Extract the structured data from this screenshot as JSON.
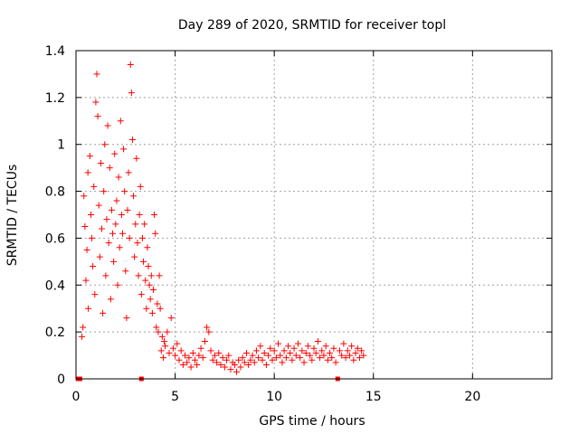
{
  "chart_data": {
    "type": "scatter",
    "title": "Day 289 of 2020, SRMTID for receiver topl",
    "xlabel": "GPS time / hours",
    "ylabel": "SRMTID / TECUs",
    "xlim": [
      0,
      24
    ],
    "ylim": [
      0,
      1.4
    ],
    "xticks": [
      0,
      5,
      10,
      15,
      20
    ],
    "xtick_labels": [
      "0",
      "5",
      "10",
      "15",
      "20"
    ],
    "yticks": [
      0,
      0.2,
      0.4,
      0.6,
      0.8,
      1,
      1.2,
      1.4
    ],
    "ytick_labels": [
      "0",
      "0.2",
      "0.4",
      "0.6",
      "0.8",
      "1",
      "1.2",
      "1.4"
    ],
    "grid": true,
    "marker": "+",
    "color": "#ff0000",
    "series": [
      {
        "name": "SRMTID",
        "marker_squares_x": [
          0.1,
          0.2,
          3.3,
          13.2
        ],
        "points": [
          [
            0.3,
            0.18
          ],
          [
            0.35,
            0.22
          ],
          [
            0.4,
            0.78
          ],
          [
            0.45,
            0.65
          ],
          [
            0.5,
            0.42
          ],
          [
            0.55,
            0.55
          ],
          [
            0.6,
            0.88
          ],
          [
            0.62,
            0.3
          ],
          [
            0.7,
            0.95
          ],
          [
            0.75,
            0.7
          ],
          [
            0.8,
            0.6
          ],
          [
            0.85,
            0.48
          ],
          [
            0.9,
            0.82
          ],
          [
            0.95,
            0.36
          ],
          [
            1.0,
            1.18
          ],
          [
            1.05,
            1.3
          ],
          [
            1.1,
            1.12
          ],
          [
            1.15,
            0.74
          ],
          [
            1.2,
            0.52
          ],
          [
            1.25,
            0.92
          ],
          [
            1.3,
            0.64
          ],
          [
            1.35,
            0.28
          ],
          [
            1.4,
            0.8
          ],
          [
            1.45,
            1.0
          ],
          [
            1.5,
            0.44
          ],
          [
            1.55,
            0.68
          ],
          [
            1.6,
            1.08
          ],
          [
            1.65,
            0.58
          ],
          [
            1.7,
            0.9
          ],
          [
            1.75,
            0.34
          ],
          [
            1.8,
            0.72
          ],
          [
            1.85,
            0.62
          ],
          [
            1.9,
            0.5
          ],
          [
            1.95,
            0.96
          ],
          [
            2.0,
            0.66
          ],
          [
            2.05,
            0.76
          ],
          [
            2.1,
            0.4
          ],
          [
            2.15,
            0.86
          ],
          [
            2.2,
            0.56
          ],
          [
            2.25,
            1.1
          ],
          [
            2.3,
            0.7
          ],
          [
            2.35,
            0.62
          ],
          [
            2.4,
            0.98
          ],
          [
            2.45,
            0.8
          ],
          [
            2.5,
            0.46
          ],
          [
            2.55,
            0.26
          ],
          [
            2.6,
            0.72
          ],
          [
            2.65,
            0.88
          ],
          [
            2.7,
            0.6
          ],
          [
            2.75,
            1.34
          ],
          [
            2.8,
            1.22
          ],
          [
            2.85,
            1.02
          ],
          [
            2.9,
            0.78
          ],
          [
            2.95,
            0.52
          ],
          [
            3.0,
            0.66
          ],
          [
            3.05,
            0.94
          ],
          [
            3.1,
            0.58
          ],
          [
            3.15,
            0.44
          ],
          [
            3.2,
            0.7
          ],
          [
            3.25,
            0.82
          ],
          [
            3.3,
            0.36
          ],
          [
            3.35,
            0.6
          ],
          [
            3.4,
            0.5
          ],
          [
            3.45,
            0.66
          ],
          [
            3.5,
            0.42
          ],
          [
            3.55,
            0.3
          ],
          [
            3.6,
            0.56
          ],
          [
            3.65,
            0.48
          ],
          [
            3.7,
            0.4
          ],
          [
            3.75,
            0.34
          ],
          [
            3.8,
            0.44
          ],
          [
            3.85,
            0.28
          ],
          [
            3.9,
            0.38
          ],
          [
            3.95,
            0.7
          ],
          [
            4.0,
            0.62
          ],
          [
            4.05,
            0.22
          ],
          [
            4.1,
            0.32
          ],
          [
            4.15,
            0.2
          ],
          [
            4.2,
            0.44
          ],
          [
            4.25,
            0.3
          ],
          [
            4.3,
            0.12
          ],
          [
            4.35,
            0.18
          ],
          [
            4.4,
            0.09
          ],
          [
            4.45,
            0.16
          ],
          [
            4.5,
            0.14
          ],
          [
            4.6,
            0.2
          ],
          [
            4.7,
            0.11
          ],
          [
            4.8,
            0.26
          ],
          [
            4.9,
            0.13
          ],
          [
            5.0,
            0.1
          ],
          [
            5.1,
            0.15
          ],
          [
            5.2,
            0.08
          ],
          [
            5.3,
            0.12
          ],
          [
            5.4,
            0.06
          ],
          [
            5.5,
            0.1
          ],
          [
            5.6,
            0.07
          ],
          [
            5.7,
            0.09
          ],
          [
            5.8,
            0.05
          ],
          [
            5.9,
            0.11
          ],
          [
            6.0,
            0.08
          ],
          [
            6.1,
            0.06
          ],
          [
            6.2,
            0.1
          ],
          [
            6.3,
            0.13
          ],
          [
            6.4,
            0.09
          ],
          [
            6.5,
            0.16
          ],
          [
            6.6,
            0.22
          ],
          [
            6.7,
            0.2
          ],
          [
            6.8,
            0.12
          ],
          [
            6.9,
            0.08
          ],
          [
            7.0,
            0.1
          ],
          [
            7.1,
            0.07
          ],
          [
            7.2,
            0.11
          ],
          [
            7.3,
            0.06
          ],
          [
            7.4,
            0.09
          ],
          [
            7.5,
            0.05
          ],
          [
            7.6,
            0.08
          ],
          [
            7.7,
            0.1
          ],
          [
            7.8,
            0.04
          ],
          [
            7.9,
            0.07
          ],
          [
            8.0,
            0.06
          ],
          [
            8.1,
            0.03
          ],
          [
            8.2,
            0.08
          ],
          [
            8.3,
            0.05
          ],
          [
            8.4,
            0.09
          ],
          [
            8.5,
            0.07
          ],
          [
            8.6,
            0.11
          ],
          [
            8.7,
            0.06
          ],
          [
            8.8,
            0.08
          ],
          [
            8.9,
            0.1
          ],
          [
            9.0,
            0.07
          ],
          [
            9.1,
            0.12
          ],
          [
            9.2,
            0.09
          ],
          [
            9.3,
            0.14
          ],
          [
            9.4,
            0.08
          ],
          [
            9.5,
            0.11
          ],
          [
            9.6,
            0.06
          ],
          [
            9.7,
            0.1
          ],
          [
            9.8,
            0.13
          ],
          [
            9.9,
            0.08
          ],
          [
            10.0,
            0.12
          ],
          [
            10.1,
            0.09
          ],
          [
            10.2,
            0.15
          ],
          [
            10.3,
            0.1
          ],
          [
            10.4,
            0.07
          ],
          [
            10.5,
            0.12
          ],
          [
            10.6,
            0.09
          ],
          [
            10.7,
            0.14
          ],
          [
            10.8,
            0.11
          ],
          [
            10.9,
            0.08
          ],
          [
            11.0,
            0.13
          ],
          [
            11.1,
            0.1
          ],
          [
            11.2,
            0.15
          ],
          [
            11.3,
            0.09
          ],
          [
            11.4,
            0.12
          ],
          [
            11.5,
            0.07
          ],
          [
            11.6,
            0.11
          ],
          [
            11.7,
            0.14
          ],
          [
            11.8,
            0.1
          ],
          [
            11.9,
            0.08
          ],
          [
            12.0,
            0.13
          ],
          [
            12.1,
            0.11
          ],
          [
            12.2,
            0.16
          ],
          [
            12.3,
            0.09
          ],
          [
            12.4,
            0.12
          ],
          [
            12.5,
            0.1
          ],
          [
            12.6,
            0.14
          ],
          [
            12.7,
            0.08
          ],
          [
            12.8,
            0.11
          ],
          [
            12.9,
            0.09
          ],
          [
            13.0,
            0.13
          ],
          [
            13.1,
            0.07
          ],
          [
            13.3,
            0.12
          ],
          [
            13.4,
            0.1
          ],
          [
            13.5,
            0.15
          ],
          [
            13.6,
            0.09
          ],
          [
            13.7,
            0.12
          ],
          [
            13.8,
            0.1
          ],
          [
            13.9,
            0.14
          ],
          [
            14.0,
            0.08
          ],
          [
            14.1,
            0.11
          ],
          [
            14.2,
            0.13
          ],
          [
            14.3,
            0.09
          ],
          [
            14.4,
            0.12
          ],
          [
            14.5,
            0.1
          ]
        ]
      }
    ]
  }
}
